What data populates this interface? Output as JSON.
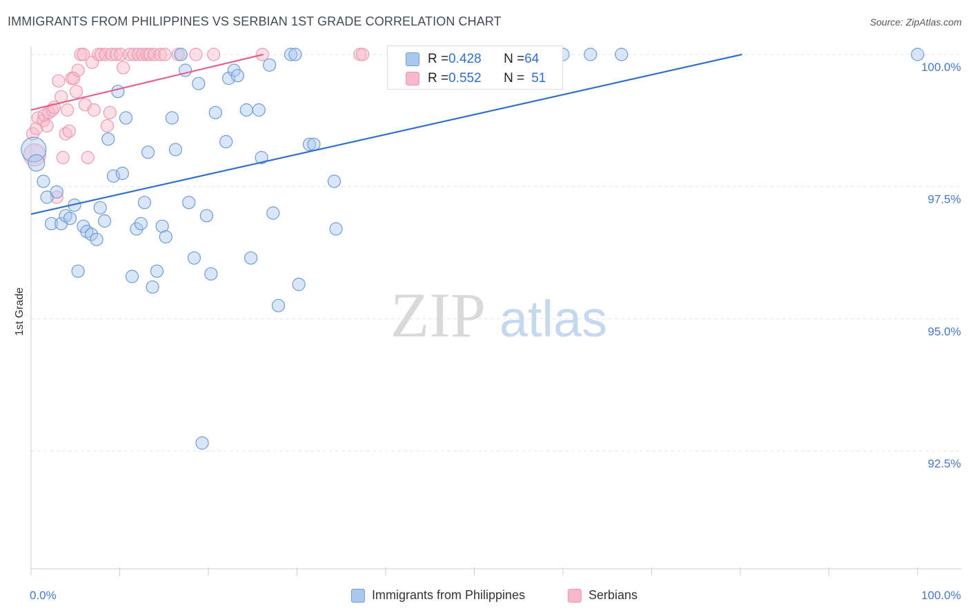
{
  "header": {
    "title": "IMMIGRANTS FROM PHILIPPINES VS SERBIAN 1ST GRADE CORRELATION CHART",
    "source": "Source: ZipAtlas.com"
  },
  "watermark": {
    "zip": "ZIP",
    "atlas": "atlas"
  },
  "colors": {
    "blue_fill": "#aac8ef",
    "blue_stroke": "#6e9bd6",
    "blue_line": "#2f6fd0",
    "pink_fill": "#f7b8c9",
    "pink_stroke": "#ec9ab2",
    "pink_line": "#e8618a",
    "grid": "#e3e3e3",
    "tick_label": "#4477cc"
  },
  "stats": {
    "blue": {
      "r_label": "R = ",
      "r_value": "0.428",
      "n_label": "N = ",
      "n_value": "64"
    },
    "pink": {
      "r_label": "R = ",
      "r_value": "0.552",
      "n_label": "N = ",
      "n_value": "51"
    }
  },
  "legend": {
    "blue_label": "Immigrants from Philippines",
    "pink_label": "Serbians"
  },
  "chart_data": {
    "type": "scatter",
    "title": "IMMIGRANTS FROM PHILIPPINES VS SERBIAN 1ST GRADE CORRELATION CHART",
    "xlabel": "",
    "ylabel": "1st Grade",
    "xlim": [
      0,
      100
    ],
    "ylim": [
      90.6,
      100.25
    ],
    "x_tick_labels": [
      "0.0%",
      "100.0%"
    ],
    "y_ticks": [
      92.5,
      95.0,
      97.5,
      100.0
    ],
    "y_tick_labels": [
      "92.5%",
      "95.0%",
      "97.5%",
      "100.0%"
    ],
    "grid": true,
    "legend_position": "bottom",
    "series": [
      {
        "name": "Immigrants from Philippines",
        "color": "blue",
        "trend": {
          "x": [
            0,
            80.2
          ],
          "y": [
            96.98,
            100.0
          ]
        },
        "points": [
          {
            "x": 0.3,
            "y": 98.2,
            "size": 18
          },
          {
            "x": 0.6,
            "y": 97.95,
            "size": 12
          },
          {
            "x": 1.4,
            "y": 97.6
          },
          {
            "x": 1.8,
            "y": 97.3
          },
          {
            "x": 2.3,
            "y": 96.8
          },
          {
            "x": 2.9,
            "y": 97.4
          },
          {
            "x": 3.4,
            "y": 96.8
          },
          {
            "x": 3.9,
            "y": 96.95
          },
          {
            "x": 4.4,
            "y": 96.9
          },
          {
            "x": 4.9,
            "y": 97.15
          },
          {
            "x": 5.3,
            "y": 95.9
          },
          {
            "x": 5.9,
            "y": 96.75
          },
          {
            "x": 6.3,
            "y": 96.65
          },
          {
            "x": 6.8,
            "y": 96.6
          },
          {
            "x": 7.4,
            "y": 96.5
          },
          {
            "x": 7.8,
            "y": 97.1
          },
          {
            "x": 8.3,
            "y": 96.85
          },
          {
            "x": 8.7,
            "y": 98.4
          },
          {
            "x": 9.3,
            "y": 97.7
          },
          {
            "x": 9.8,
            "y": 99.3
          },
          {
            "x": 10.3,
            "y": 97.75
          },
          {
            "x": 10.7,
            "y": 98.8
          },
          {
            "x": 11.4,
            "y": 95.8
          },
          {
            "x": 11.9,
            "y": 96.7
          },
          {
            "x": 12.4,
            "y": 96.8
          },
          {
            "x": 12.8,
            "y": 97.2
          },
          {
            "x": 13.2,
            "y": 98.15
          },
          {
            "x": 13.7,
            "y": 95.6
          },
          {
            "x": 14.2,
            "y": 95.9
          },
          {
            "x": 14.8,
            "y": 96.75
          },
          {
            "x": 15.2,
            "y": 96.55
          },
          {
            "x": 15.9,
            "y": 98.8
          },
          {
            "x": 16.3,
            "y": 98.2
          },
          {
            "x": 16.9,
            "y": 100.0
          },
          {
            "x": 17.4,
            "y": 99.7
          },
          {
            "x": 17.8,
            "y": 97.2
          },
          {
            "x": 18.4,
            "y": 96.15
          },
          {
            "x": 18.9,
            "y": 99.45
          },
          {
            "x": 19.3,
            "y": 92.65
          },
          {
            "x": 19.8,
            "y": 96.95
          },
          {
            "x": 20.3,
            "y": 95.85
          },
          {
            "x": 20.8,
            "y": 98.9
          },
          {
            "x": 22.0,
            "y": 98.35
          },
          {
            "x": 22.3,
            "y": 99.55
          },
          {
            "x": 22.9,
            "y": 99.7
          },
          {
            "x": 23.3,
            "y": 99.6
          },
          {
            "x": 24.3,
            "y": 98.95
          },
          {
            "x": 24.8,
            "y": 96.15
          },
          {
            "x": 25.7,
            "y": 98.95
          },
          {
            "x": 26.0,
            "y": 98.05
          },
          {
            "x": 26.9,
            "y": 99.8
          },
          {
            "x": 27.3,
            "y": 97.0
          },
          {
            "x": 27.9,
            "y": 95.25
          },
          {
            "x": 29.3,
            "y": 100.0
          },
          {
            "x": 29.8,
            "y": 100.0
          },
          {
            "x": 30.2,
            "y": 95.65
          },
          {
            "x": 31.4,
            "y": 98.3
          },
          {
            "x": 31.9,
            "y": 98.3
          },
          {
            "x": 34.2,
            "y": 97.6
          },
          {
            "x": 34.4,
            "y": 96.7
          },
          {
            "x": 60.0,
            "y": 100.0
          },
          {
            "x": 63.1,
            "y": 100.0
          },
          {
            "x": 66.6,
            "y": 100.0
          },
          {
            "x": 100.0,
            "y": 100.0
          }
        ]
      },
      {
        "name": "Serbians",
        "color": "pink",
        "trend": {
          "x": [
            0,
            26.2
          ],
          "y": [
            98.95,
            100.0
          ]
        },
        "points": [
          {
            "x": 0.2,
            "y": 98.5
          },
          {
            "x": 0.4,
            "y": 98.1,
            "size": 16
          },
          {
            "x": 0.6,
            "y": 98.6
          },
          {
            "x": 0.8,
            "y": 98.8
          },
          {
            "x": 1.4,
            "y": 98.75
          },
          {
            "x": 1.5,
            "y": 98.85
          },
          {
            "x": 1.8,
            "y": 98.65
          },
          {
            "x": 2.0,
            "y": 98.9
          },
          {
            "x": 2.4,
            "y": 98.95
          },
          {
            "x": 2.6,
            "y": 99.0
          },
          {
            "x": 2.9,
            "y": 97.3
          },
          {
            "x": 3.1,
            "y": 99.5
          },
          {
            "x": 3.4,
            "y": 99.2
          },
          {
            "x": 3.6,
            "y": 98.05
          },
          {
            "x": 3.9,
            "y": 98.5
          },
          {
            "x": 4.1,
            "y": 98.95
          },
          {
            "x": 4.3,
            "y": 98.55
          },
          {
            "x": 4.6,
            "y": 99.55
          },
          {
            "x": 4.8,
            "y": 99.55
          },
          {
            "x": 5.1,
            "y": 99.3
          },
          {
            "x": 5.3,
            "y": 99.7
          },
          {
            "x": 5.6,
            "y": 100.0
          },
          {
            "x": 5.9,
            "y": 100.0
          },
          {
            "x": 6.1,
            "y": 99.05
          },
          {
            "x": 6.4,
            "y": 98.05
          },
          {
            "x": 6.9,
            "y": 99.85
          },
          {
            "x": 7.1,
            "y": 98.95
          },
          {
            "x": 7.6,
            "y": 100.0
          },
          {
            "x": 7.9,
            "y": 100.0
          },
          {
            "x": 8.4,
            "y": 100.0
          },
          {
            "x": 8.6,
            "y": 98.65
          },
          {
            "x": 8.9,
            "y": 98.9
          },
          {
            "x": 9.1,
            "y": 100.0
          },
          {
            "x": 9.6,
            "y": 100.0
          },
          {
            "x": 10.1,
            "y": 100.0
          },
          {
            "x": 10.4,
            "y": 99.75
          },
          {
            "x": 11.1,
            "y": 100.0
          },
          {
            "x": 11.6,
            "y": 100.0
          },
          {
            "x": 12.1,
            "y": 100.0
          },
          {
            "x": 12.6,
            "y": 100.0
          },
          {
            "x": 13.1,
            "y": 100.0
          },
          {
            "x": 13.4,
            "y": 100.0
          },
          {
            "x": 13.9,
            "y": 100.0
          },
          {
            "x": 14.6,
            "y": 100.0
          },
          {
            "x": 15.1,
            "y": 100.0
          },
          {
            "x": 16.6,
            "y": 100.0
          },
          {
            "x": 18.6,
            "y": 100.0
          },
          {
            "x": 20.6,
            "y": 100.0
          },
          {
            "x": 26.1,
            "y": 100.0
          },
          {
            "x": 37.1,
            "y": 100.0
          },
          {
            "x": 37.4,
            "y": 100.0
          }
        ]
      }
    ]
  }
}
